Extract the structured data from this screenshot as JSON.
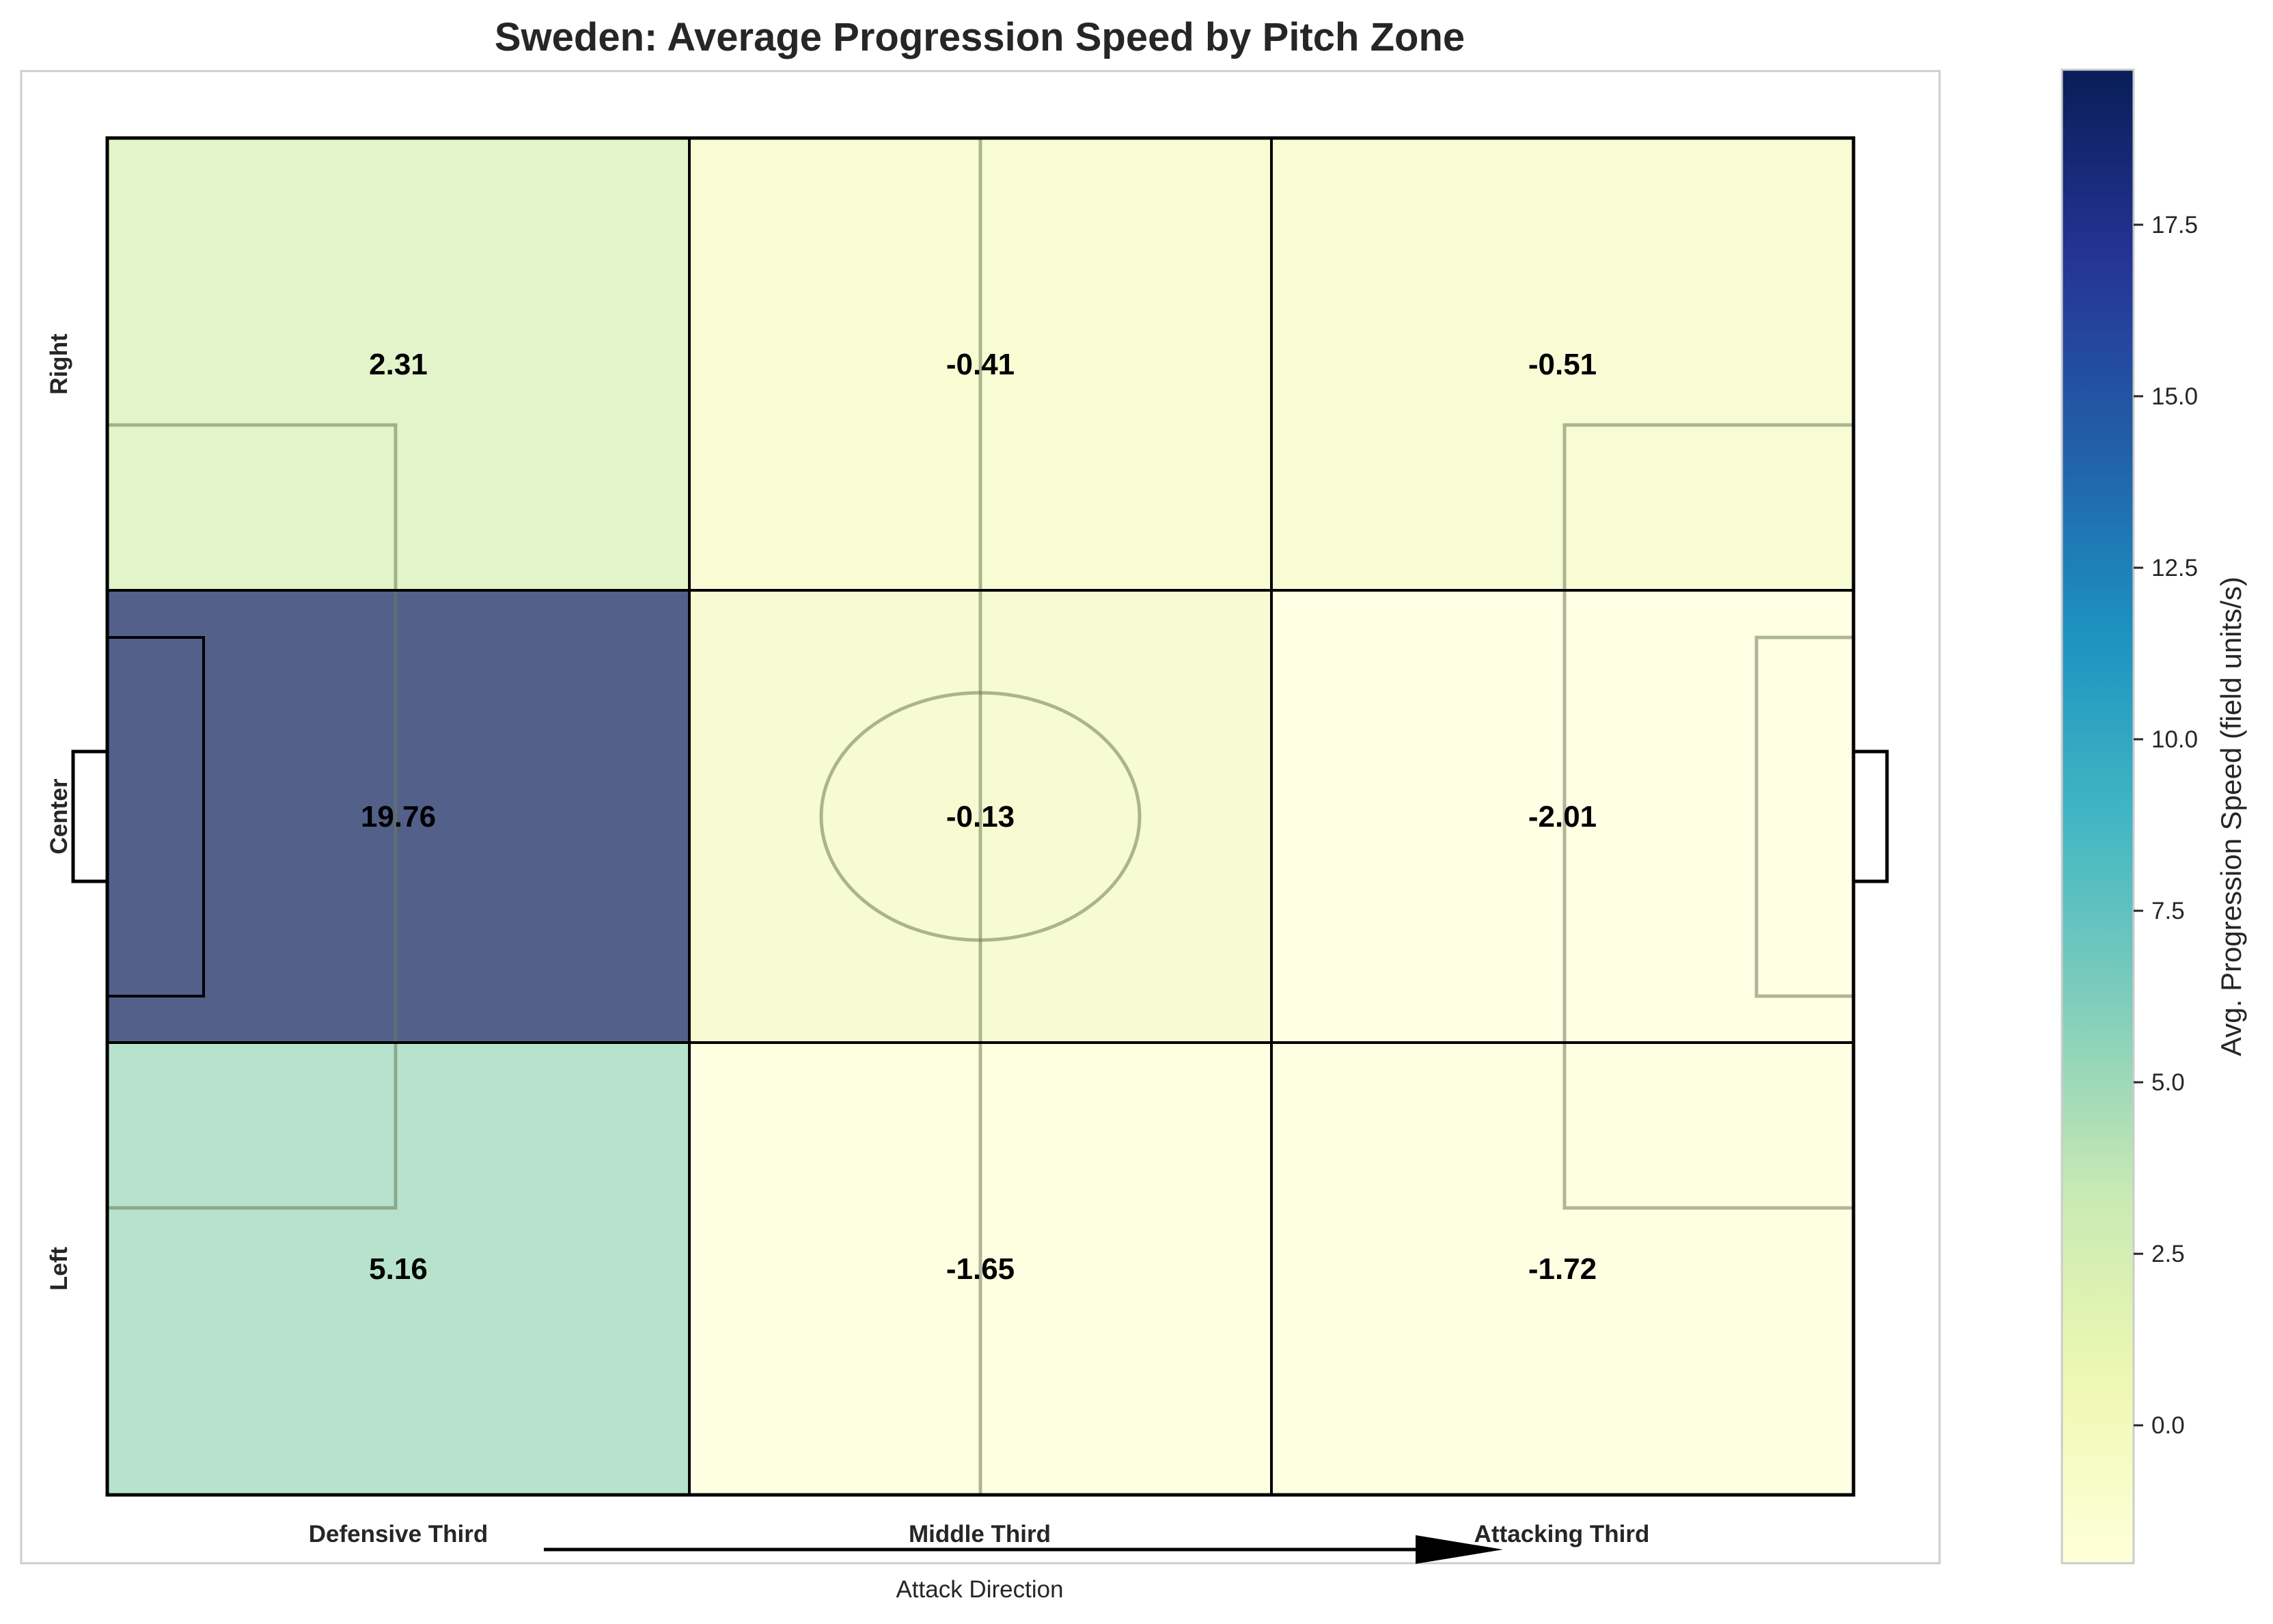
{
  "chart_data": {
    "type": "heatmap",
    "title": "Sweden: Average Progression Speed by Pitch Zone",
    "columns": [
      "Defensive Third",
      "Middle Third",
      "Attacking Third"
    ],
    "rows": [
      "Right",
      "Center",
      "Left"
    ],
    "values": [
      [
        2.31,
        -0.41,
        -0.51
      ],
      [
        19.76,
        -0.13,
        -2.01
      ],
      [
        5.16,
        -1.65,
        -1.72
      ]
    ],
    "value_labels": [
      [
        "2.31",
        "-0.41",
        "-0.51"
      ],
      [
        "19.76",
        "-0.13",
        "-2.01"
      ],
      [
        "5.16",
        "-1.65",
        "-1.72"
      ]
    ],
    "xlabel": "Attack Direction",
    "colorbar": {
      "label": "Avg. Progression Speed (field units/s)",
      "colormap": "YlGnBu",
      "range": [
        -2.01,
        19.76
      ],
      "ticks": [
        0.0,
        2.5,
        5.0,
        7.5,
        10.0,
        12.5,
        15.0,
        17.5
      ],
      "tick_labels": [
        "0.0",
        "2.5",
        "5.0",
        "7.5",
        "10.0",
        "12.5",
        "15.0",
        "17.5"
      ]
    },
    "cell_alpha": 0.7,
    "grid": false
  }
}
